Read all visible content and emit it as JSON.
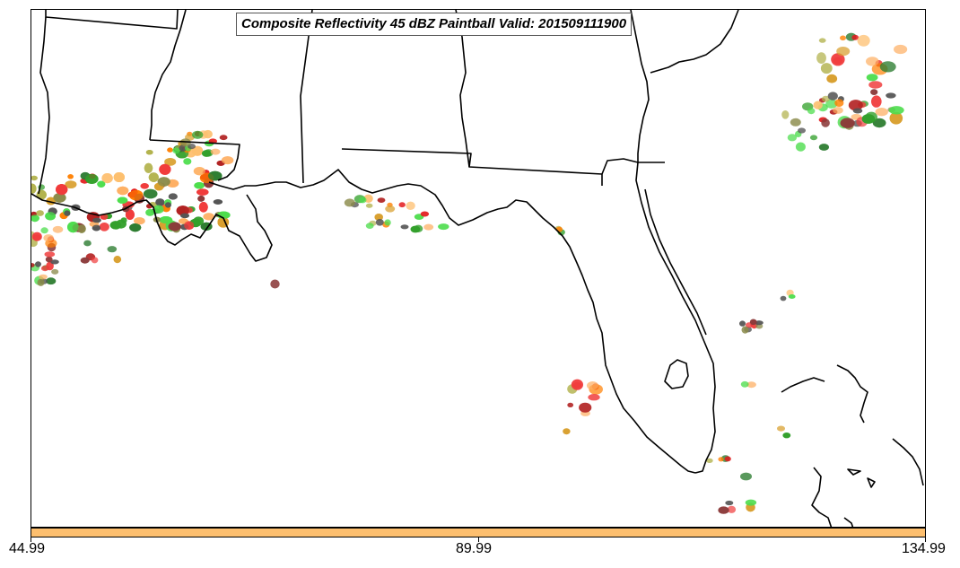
{
  "title": "Composite Reflectivity 45 dBZ Paintball Valid: 201509111900",
  "colorbar": {
    "color": "#fdbf6f",
    "labels": [
      "44.99",
      "89.99",
      "134.99"
    ]
  },
  "map": {
    "coastline_color": "#000000",
    "palette": [
      "#e31a1c",
      "#f03b3b",
      "#ff7f00",
      "#fdbf6f",
      "#fdae61",
      "#33a02c",
      "#4ddd4d",
      "#2e7d32",
      "#b2b24d",
      "#8b8b4b",
      "#8b3a3a",
      "#555555",
      "#b22222",
      "#d9a030"
    ]
  }
}
